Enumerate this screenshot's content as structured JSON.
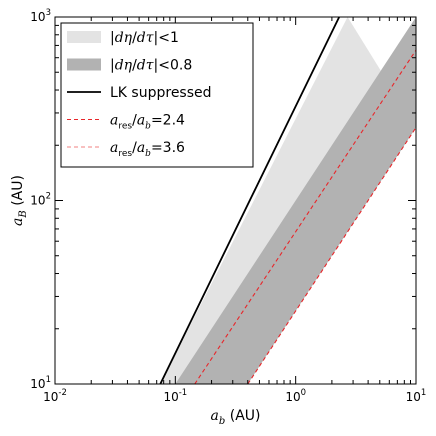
{
  "chart_data": {
    "type": "area",
    "xlabel": "a_b (AU)",
    "ylabel": "a_B (AU)",
    "xlabel_parts": {
      "base": "a",
      "sub": "b",
      "unit": " (AU)"
    },
    "ylabel_parts": {
      "base": "a",
      "sub": "B",
      "unit": " (AU)"
    },
    "xscale": "log",
    "yscale": "log",
    "xlim": [
      0.01,
      10
    ],
    "ylim": [
      10,
      1000
    ],
    "x_ticks": [
      {
        "value": 0.01,
        "base": "10",
        "exp": "-2"
      },
      {
        "value": 0.1,
        "base": "10",
        "exp": "-1"
      },
      {
        "value": 1,
        "base": "10",
        "exp": "0"
      },
      {
        "value": 10,
        "base": "10",
        "exp": "1"
      }
    ],
    "y_ticks": [
      {
        "value": 10,
        "base": "10",
        "exp": "1"
      },
      {
        "value": 100,
        "base": "10",
        "exp": "2"
      },
      {
        "value": 1000,
        "base": "10",
        "exp": "3"
      }
    ],
    "grid": false,
    "legend_position": "top-left",
    "series": [
      {
        "name": "|dη/dτ|<1",
        "kind": "band",
        "color": "#e3e3e3",
        "lower": [
          [
            0.1,
            10
          ],
          [
            10,
            250
          ]
        ],
        "upper": [
          [
            0.075,
            10
          ],
          [
            2.7,
            1000
          ]
        ]
      },
      {
        "name": "|dη/dτ|<0.8",
        "kind": "band",
        "color": "#b2b2b2",
        "lower": [
          [
            0.4,
            10
          ],
          [
            10,
            250
          ]
        ],
        "upper": [
          [
            0.1,
            10
          ],
          [
            10,
            1000
          ]
        ]
      },
      {
        "name": "LK suppressed",
        "kind": "line",
        "color": "#000000",
        "style": "solid",
        "points": [
          [
            0.075,
            10
          ],
          [
            2.3,
            1000
          ]
        ]
      },
      {
        "name": "a_res/a_b = 2.4",
        "kind": "line",
        "color": "#e8262a",
        "style": "dashed",
        "points": [
          [
            0.145,
            10
          ],
          [
            10,
            660
          ]
        ]
      },
      {
        "name": "a_res/a_b = 3.6",
        "kind": "line",
        "color": "#e8262a",
        "style": "dashed",
        "points": [
          [
            0.4,
            10
          ],
          [
            10,
            250
          ]
        ]
      }
    ],
    "legend": [
      {
        "kind": "patch",
        "color": "#e3e3e3",
        "segments": [
          {
            "t": "|"
          },
          {
            "t": "dη",
            "i": true
          },
          {
            "t": "/"
          },
          {
            "t": "dτ",
            "i": true
          },
          {
            "t": "|<1"
          }
        ]
      },
      {
        "kind": "patch",
        "color": "#b2b2b2",
        "segments": [
          {
            "t": "|"
          },
          {
            "t": "dη",
            "i": true
          },
          {
            "t": "/"
          },
          {
            "t": "dτ",
            "i": true
          },
          {
            "t": "|<0.8"
          }
        ]
      },
      {
        "kind": "line",
        "color": "#000000",
        "dash": "",
        "segments": [
          {
            "t": "LK suppressed"
          }
        ]
      },
      {
        "kind": "line",
        "color": "#e8262a",
        "dash": "4,3",
        "segments": [
          {
            "t": "a",
            "i": true
          },
          {
            "t": "res",
            "sub": true
          },
          {
            "t": "/"
          },
          {
            "t": "a",
            "i": true
          },
          {
            "t": "b",
            "sub": true,
            "i": true
          },
          {
            "t": "=2.4"
          }
        ]
      },
      {
        "kind": "line",
        "color": "#f08080",
        "dash": "4,3",
        "segments": [
          {
            "t": "a",
            "i": true
          },
          {
            "t": "res",
            "sub": true
          },
          {
            "t": "/"
          },
          {
            "t": "a",
            "i": true
          },
          {
            "t": "b",
            "sub": true,
            "i": true
          },
          {
            "t": "=3.6"
          }
        ]
      }
    ]
  }
}
